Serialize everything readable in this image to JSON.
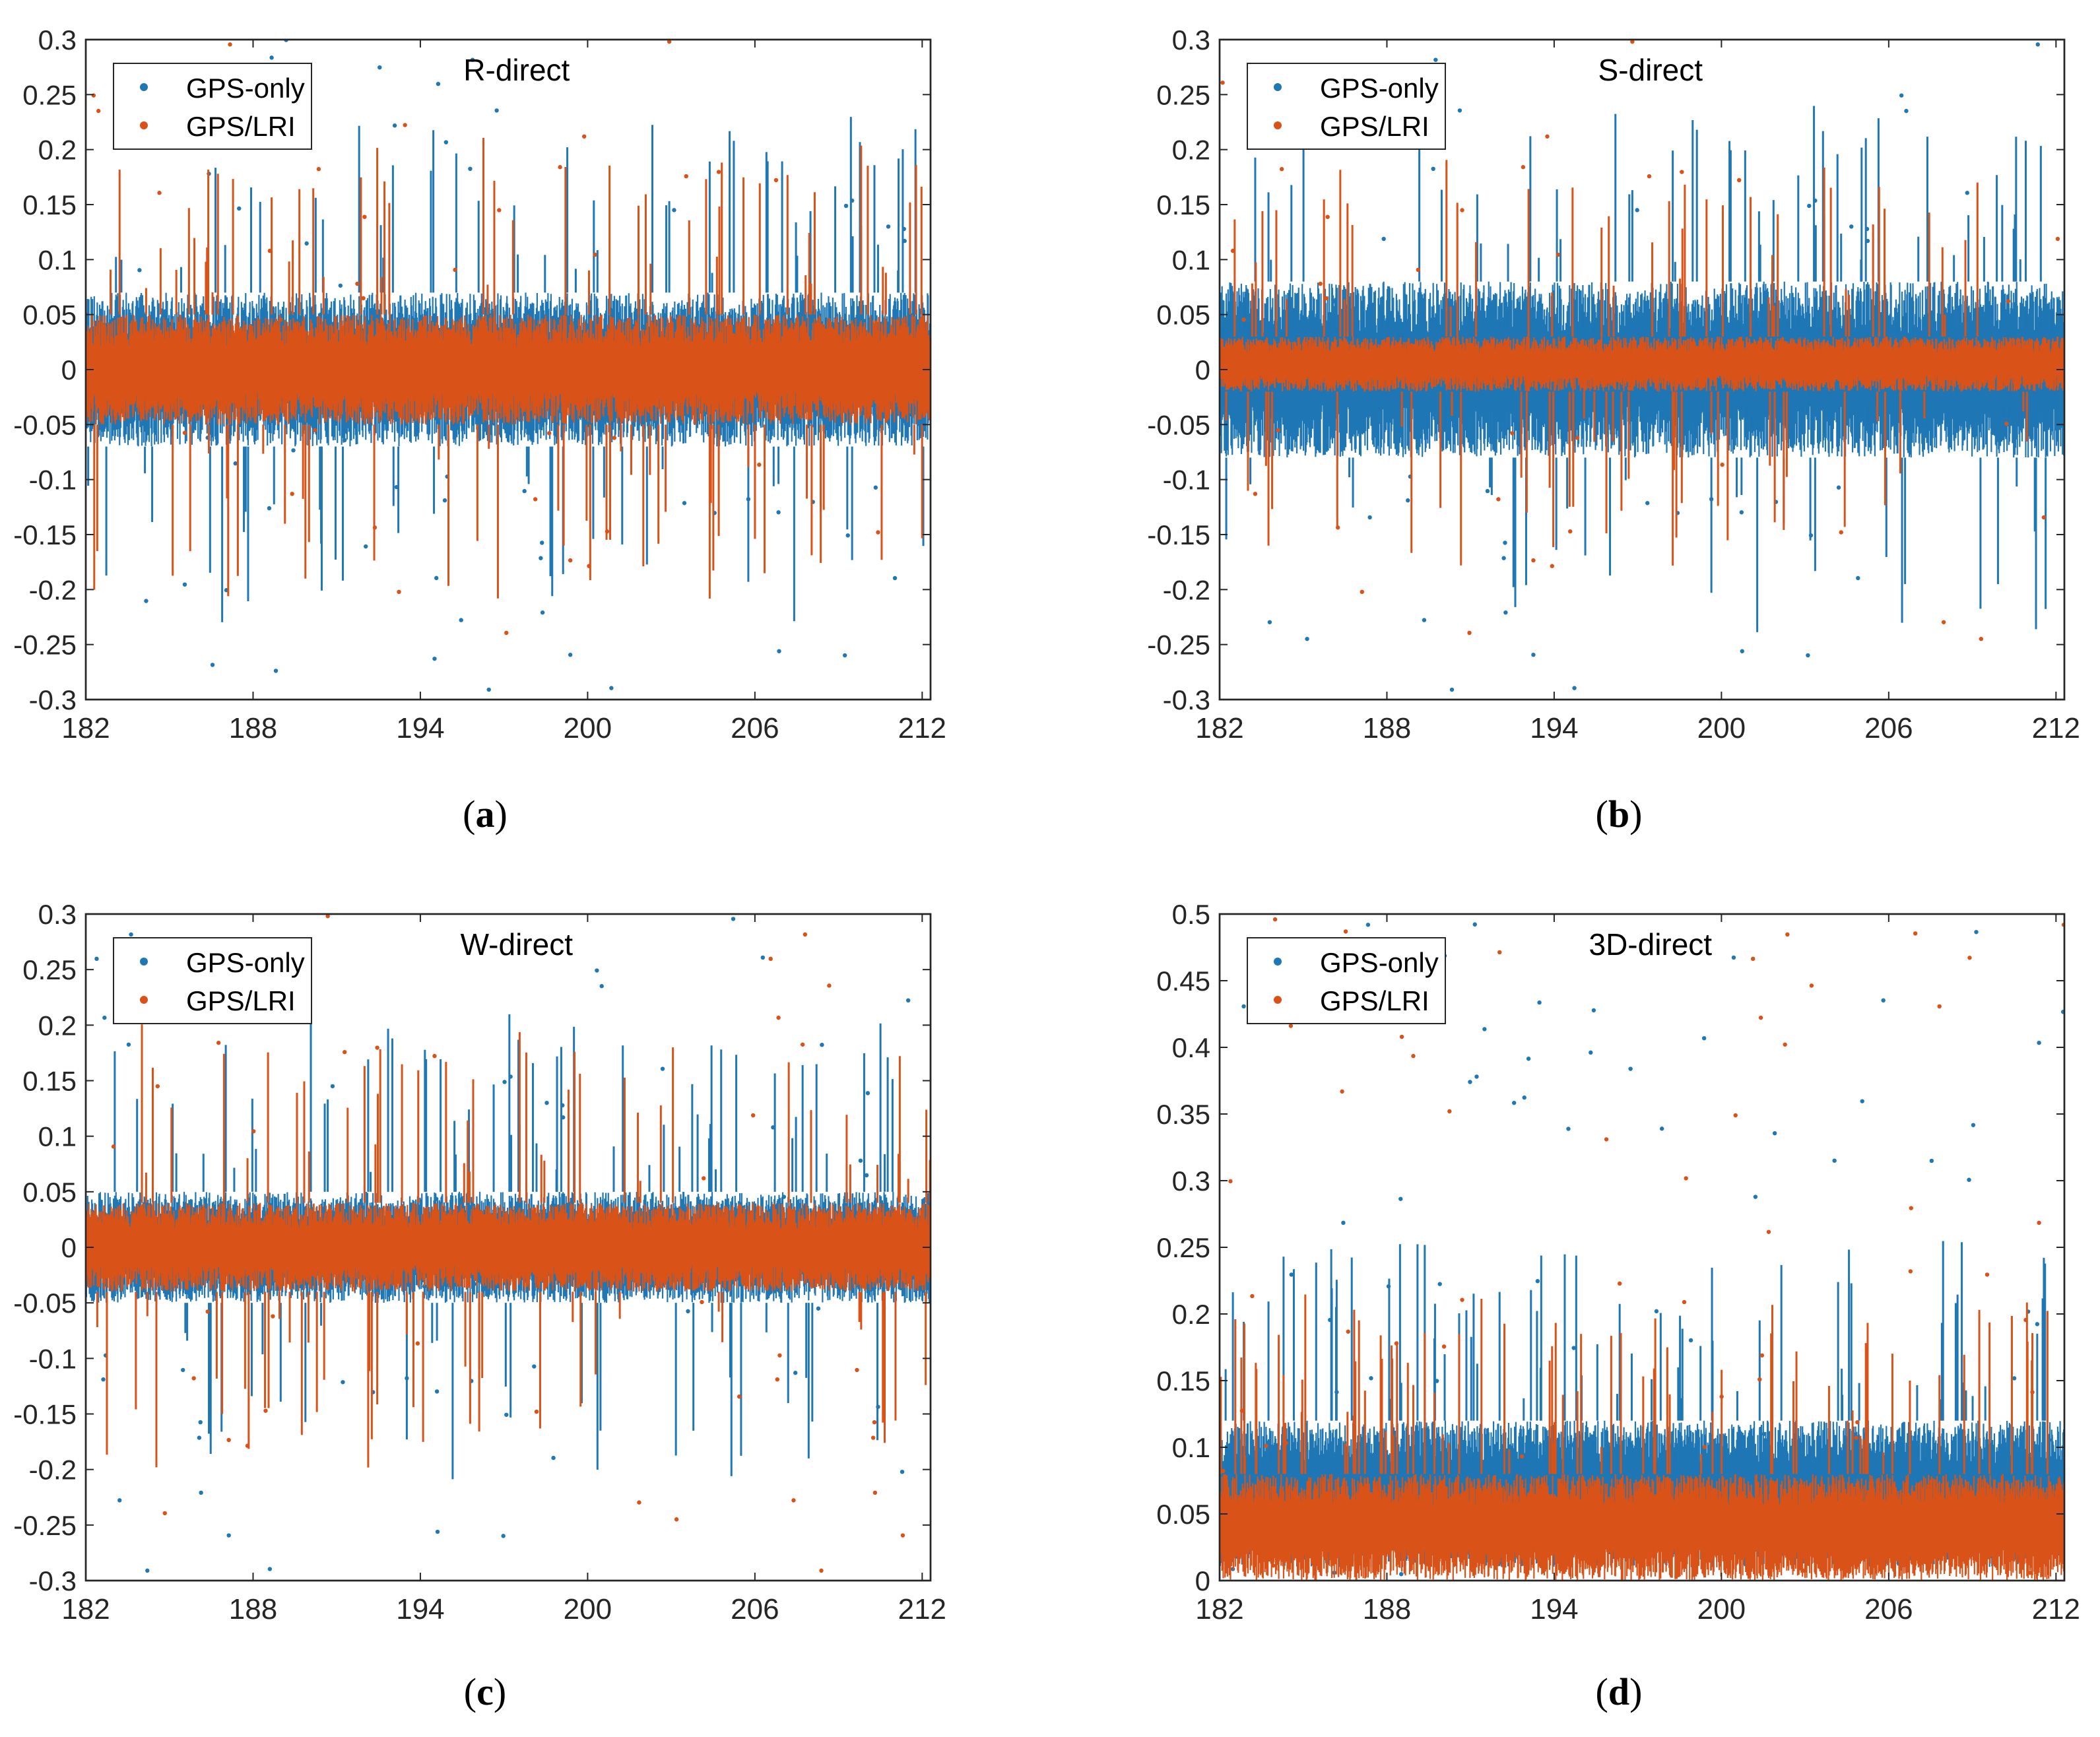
{
  "figure": {
    "colors": {
      "gps_only": "#1f77b4",
      "gps_lri": "#d95319",
      "axis": "#262626",
      "legend_border": "#262626"
    }
  },
  "panels": [
    {
      "id": "a",
      "caption_open": "(",
      "caption_letter": "a",
      "caption_close": ")"
    },
    {
      "id": "b",
      "caption_open": "(",
      "caption_letter": "b",
      "caption_close": ")"
    },
    {
      "id": "c",
      "caption_open": "(",
      "caption_letter": "c",
      "caption_close": ")"
    },
    {
      "id": "d",
      "caption_open": "(",
      "caption_letter": "d",
      "caption_close": ")"
    }
  ],
  "chart_data": [
    {
      "type": "scatter",
      "title": "R-direct",
      "xlabel": "",
      "ylabel": "",
      "xlim": [
        182,
        212.3
      ],
      "ylim": [
        -0.3,
        0.3
      ],
      "x_ticks": [
        182,
        188,
        194,
        200,
        206,
        212
      ],
      "x_tick_labels": [
        "182",
        "188",
        "194",
        "200",
        "206",
        "212"
      ],
      "y_ticks": [
        -0.3,
        -0.25,
        -0.2,
        -0.15,
        -0.1,
        -0.05,
        0,
        0.05,
        0.1,
        0.15,
        0.2,
        0.25,
        0.3
      ],
      "y_tick_labels": [
        "-0.3",
        "-0.25",
        "-0.2",
        "-0.15",
        "-0.1",
        "-0.05",
        "0",
        "0.05",
        "0.1",
        "0.15",
        "0.2",
        "0.25",
        "0.3"
      ],
      "legend_position": "top-left",
      "series": [
        {
          "name": "GPS-only",
          "color": "#1f77b4",
          "band_min": -0.07,
          "band_max": 0.07
        },
        {
          "name": "GPS/LRI",
          "color": "#d95319",
          "band_min": -0.05,
          "band_max": 0.05
        }
      ]
    },
    {
      "type": "scatter",
      "title": "S-direct",
      "xlabel": "",
      "ylabel": "",
      "xlim": [
        182,
        212.3
      ],
      "ylim": [
        -0.3,
        0.3
      ],
      "x_ticks": [
        182,
        188,
        194,
        200,
        206,
        212
      ],
      "x_tick_labels": [
        "182",
        "188",
        "194",
        "200",
        "206",
        "212"
      ],
      "y_ticks": [
        -0.3,
        -0.25,
        -0.2,
        -0.15,
        -0.1,
        -0.05,
        0,
        0.05,
        0.1,
        0.15,
        0.2,
        0.25,
        0.3
      ],
      "y_tick_labels": [
        "-0.3",
        "-0.25",
        "-0.2",
        "-0.15",
        "-0.1",
        "-0.05",
        "0",
        "0.05",
        "0.1",
        "0.15",
        "0.2",
        "0.25",
        "0.3"
      ],
      "legend_position": "top-left",
      "series": [
        {
          "name": "GPS-only",
          "color": "#1f77b4",
          "band_min": -0.08,
          "band_max": 0.08
        },
        {
          "name": "GPS/LRI",
          "color": "#d95319",
          "band_min": -0.02,
          "band_max": 0.03
        }
      ]
    },
    {
      "type": "scatter",
      "title": "W-direct",
      "xlabel": "",
      "ylabel": "",
      "xlim": [
        182,
        212.3
      ],
      "ylim": [
        -0.3,
        0.3
      ],
      "x_ticks": [
        182,
        188,
        194,
        200,
        206,
        212
      ],
      "x_tick_labels": [
        "182",
        "188",
        "194",
        "200",
        "206",
        "212"
      ],
      "y_ticks": [
        -0.3,
        -0.25,
        -0.2,
        -0.15,
        -0.1,
        -0.05,
        0,
        0.05,
        0.1,
        0.15,
        0.2,
        0.25,
        0.3
      ],
      "y_tick_labels": [
        "-0.3",
        "-0.25",
        "-0.2",
        "-0.15",
        "-0.1",
        "-0.05",
        "0",
        "0.05",
        "0.1",
        "0.15",
        "0.2",
        "0.25",
        "0.3"
      ],
      "legend_position": "top-left",
      "series": [
        {
          "name": "GPS-only",
          "color": "#1f77b4",
          "band_min": -0.05,
          "band_max": 0.05
        },
        {
          "name": "GPS/LRI",
          "color": "#d95319",
          "band_min": -0.04,
          "band_max": 0.04
        }
      ]
    },
    {
      "type": "scatter",
      "title": "3D-direct",
      "xlabel": "",
      "ylabel": "",
      "xlim": [
        182,
        212.3
      ],
      "ylim": [
        0,
        0.5
      ],
      "x_ticks": [
        182,
        188,
        194,
        200,
        206,
        212
      ],
      "x_tick_labels": [
        "182",
        "188",
        "194",
        "200",
        "206",
        "212"
      ],
      "y_ticks": [
        0,
        0.05,
        0.1,
        0.15,
        0.2,
        0.25,
        0.3,
        0.35,
        0.4,
        0.45,
        0.5
      ],
      "y_tick_labels": [
        "0",
        "0.05",
        "0.1",
        "0.15",
        "0.2",
        "0.25",
        "0.3",
        "0.35",
        "0.4",
        "0.45",
        "0.5"
      ],
      "legend_position": "top-left",
      "series": [
        {
          "name": "GPS-only",
          "color": "#1f77b4",
          "band_min": 0.01,
          "band_max": 0.12
        },
        {
          "name": "GPS/LRI",
          "color": "#d95319",
          "band_min": 0.0,
          "band_max": 0.08
        }
      ]
    }
  ]
}
